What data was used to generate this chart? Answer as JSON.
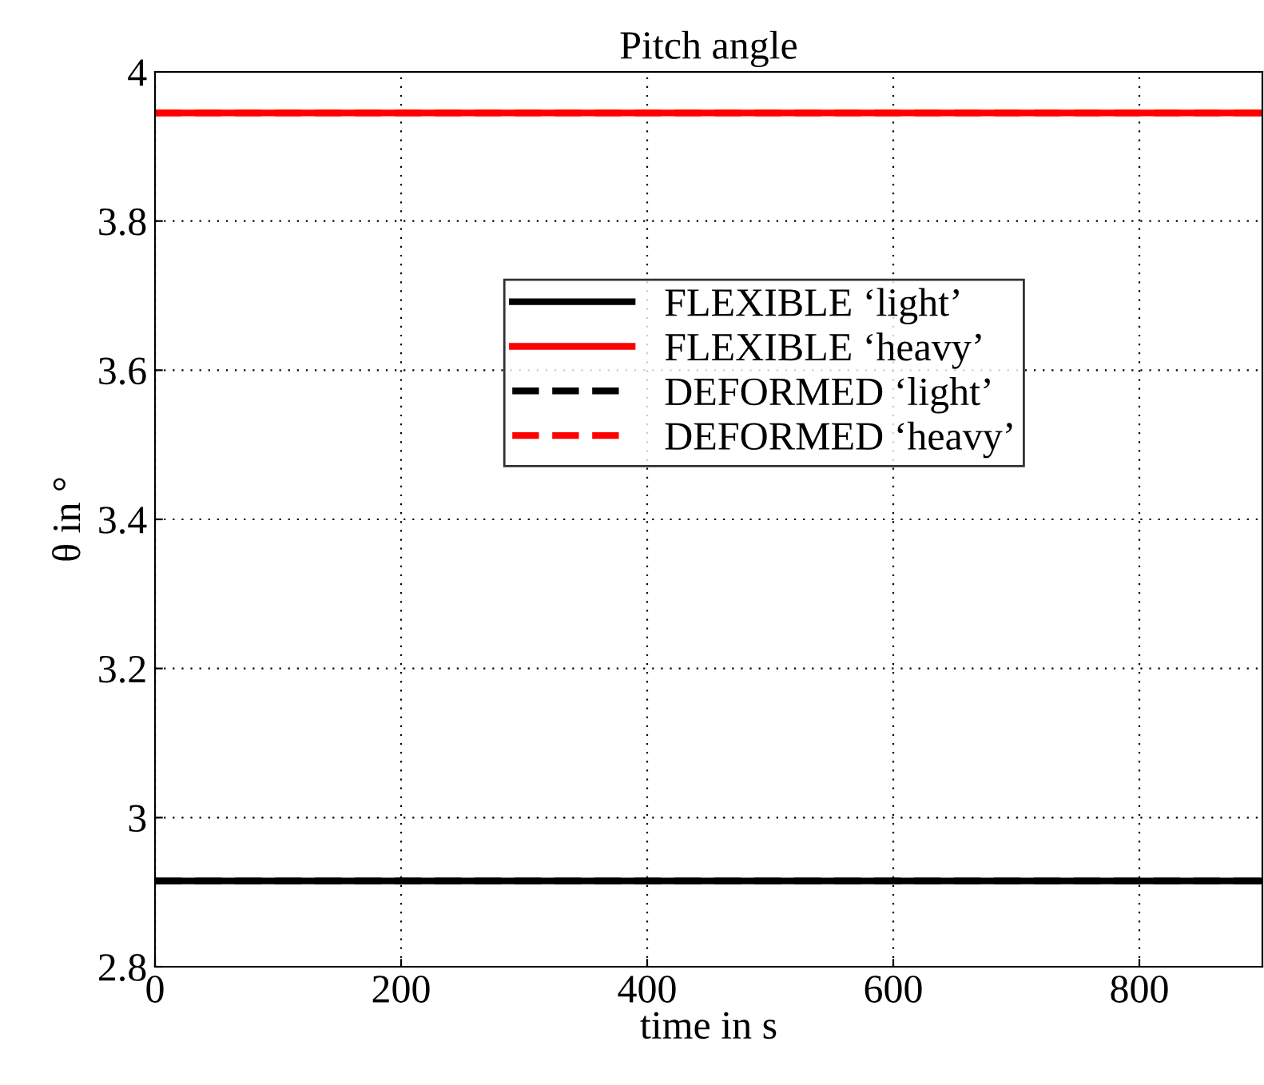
{
  "chart_data": {
    "type": "line",
    "title": "Pitch angle",
    "xlabel": "time in s",
    "ylabel": "θ in °",
    "x": [
      0,
      900
    ],
    "series": [
      {
        "name": "FLEXIBLE ‘light’",
        "color": "#000000",
        "line_style": "solid",
        "values": [
          2.915,
          2.915
        ]
      },
      {
        "name": "FLEXIBLE ‘heavy’",
        "color": "#ff0000",
        "line_style": "solid",
        "values": [
          3.945,
          3.945
        ]
      },
      {
        "name": "DEFORMED ‘light’",
        "color": "#000000",
        "line_style": "dashed",
        "values": [
          2.915,
          2.915
        ]
      },
      {
        "name": "DEFORMED ‘heavy’",
        "color": "#ff0000",
        "line_style": "dashed",
        "values": [
          3.945,
          3.945
        ]
      }
    ],
    "xlim": [
      0,
      900
    ],
    "xticks": [
      0,
      200,
      400,
      600,
      800
    ],
    "ylim": [
      2.8,
      4
    ],
    "yticks": [
      2.8,
      3,
      3.2,
      3.4,
      3.6,
      3.8,
      4
    ],
    "grid": true,
    "legend": "top",
    "marker": "none"
  }
}
